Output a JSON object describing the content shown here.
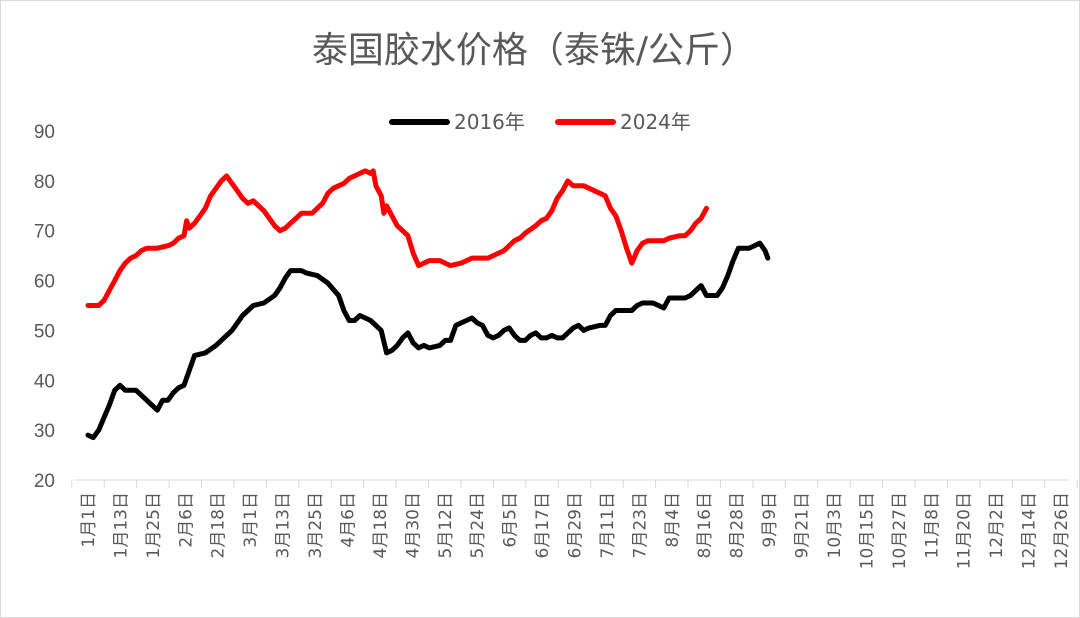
{
  "chart_data": {
    "type": "line",
    "title": "泰国胶水价格（泰铢/公斤）",
    "xlabel": "",
    "ylabel": "",
    "ylim": [
      20,
      90
    ],
    "yticks": [
      "20",
      "30",
      "40",
      "50",
      "60",
      "70",
      "80",
      "90"
    ],
    "grid": false,
    "legend_position": "top-center",
    "categories": [
      "1月1日",
      "1月13日",
      "1月25日",
      "2月6日",
      "2月18日",
      "3月1日",
      "3月13日",
      "3月25日",
      "4月6日",
      "4月18日",
      "4月30日",
      "5月12日",
      "5月24日",
      "6月5日",
      "6月17日",
      "6月29日",
      "7月11日",
      "7月23日",
      "8月4日",
      "8月16日",
      "8月28日",
      "9月9日",
      "9月21日",
      "10月3日",
      "10月15日",
      "10月27日",
      "11月8日",
      "11月20日",
      "12月2日",
      "12月14日",
      "12月26日"
    ],
    "series": [
      {
        "name": "2016年",
        "color": "#000000",
        "points": [
          [
            0,
            29
          ],
          [
            2,
            28.5
          ],
          [
            4,
            30
          ],
          [
            8,
            35
          ],
          [
            10,
            38
          ],
          [
            12,
            39
          ],
          [
            14,
            38
          ],
          [
            18,
            38
          ],
          [
            20,
            37
          ],
          [
            24,
            35
          ],
          [
            26,
            34
          ],
          [
            28,
            36
          ],
          [
            30,
            36
          ],
          [
            32,
            37.5
          ],
          [
            34,
            38.5
          ],
          [
            36,
            39
          ],
          [
            38,
            42
          ],
          [
            40,
            45
          ],
          [
            44,
            45.5
          ],
          [
            48,
            47
          ],
          [
            50,
            48
          ],
          [
            54,
            50
          ],
          [
            58,
            53
          ],
          [
            62,
            55
          ],
          [
            66,
            55.5
          ],
          [
            70,
            57
          ],
          [
            72,
            58.5
          ],
          [
            74,
            60.5
          ],
          [
            76,
            62
          ],
          [
            80,
            62
          ],
          [
            82,
            61.5
          ],
          [
            86,
            61
          ],
          [
            90,
            59.5
          ],
          [
            94,
            57
          ],
          [
            96,
            54
          ],
          [
            98,
            52
          ],
          [
            100,
            52
          ],
          [
            102,
            53
          ],
          [
            106,
            52
          ],
          [
            110,
            50
          ],
          [
            112,
            45.5
          ],
          [
            114,
            46
          ],
          [
            116,
            47
          ],
          [
            118,
            48.5
          ],
          [
            120,
            49.5
          ],
          [
            122,
            47.5
          ],
          [
            124,
            46.5
          ],
          [
            126,
            47
          ],
          [
            128,
            46.5
          ],
          [
            132,
            47
          ],
          [
            134,
            48
          ],
          [
            136,
            48
          ],
          [
            138,
            51
          ],
          [
            140,
            51.5
          ],
          [
            142,
            52
          ],
          [
            144,
            52.5
          ],
          [
            146,
            51.5
          ],
          [
            148,
            51
          ],
          [
            150,
            49
          ],
          [
            152,
            48.5
          ],
          [
            154,
            49
          ],
          [
            156,
            50
          ],
          [
            158,
            50.5
          ],
          [
            160,
            49
          ],
          [
            162,
            48
          ],
          [
            164,
            48
          ],
          [
            166,
            49
          ],
          [
            168,
            49.5
          ],
          [
            170,
            48.5
          ],
          [
            172,
            48.5
          ],
          [
            174,
            49
          ],
          [
            176,
            48.5
          ],
          [
            178,
            48.5
          ],
          [
            182,
            50.5
          ],
          [
            184,
            51
          ],
          [
            186,
            50
          ],
          [
            188,
            50.5
          ],
          [
            192,
            51
          ],
          [
            194,
            51
          ],
          [
            196,
            53
          ],
          [
            198,
            54
          ],
          [
            200,
            54
          ],
          [
            204,
            54
          ],
          [
            206,
            55
          ],
          [
            208,
            55.5
          ],
          [
            212,
            55.5
          ],
          [
            214,
            55
          ],
          [
            216,
            54.5
          ],
          [
            218,
            56.5
          ],
          [
            224,
            56.5
          ],
          [
            226,
            57
          ],
          [
            228,
            58
          ],
          [
            230,
            59
          ],
          [
            232,
            57
          ],
          [
            234,
            57
          ],
          [
            236,
            57
          ],
          [
            238,
            58.5
          ],
          [
            240,
            61
          ],
          [
            242,
            64
          ],
          [
            244,
            66.5
          ],
          [
            246,
            66.5
          ],
          [
            248,
            66.5
          ],
          [
            250,
            67
          ],
          [
            252,
            67.5
          ],
          [
            254,
            66
          ],
          [
            255,
            64.5
          ]
        ]
      },
      {
        "name": "2024年",
        "color": "#ff0000",
        "points": [
          [
            0,
            55
          ],
          [
            2,
            55
          ],
          [
            4,
            55
          ],
          [
            6,
            56
          ],
          [
            8,
            58
          ],
          [
            10,
            60
          ],
          [
            12,
            62
          ],
          [
            14,
            63.5
          ],
          [
            16,
            64.5
          ],
          [
            18,
            65
          ],
          [
            20,
            66
          ],
          [
            22,
            66.5
          ],
          [
            26,
            66.5
          ],
          [
            30,
            67
          ],
          [
            32,
            67.5
          ],
          [
            34,
            68.5
          ],
          [
            36,
            69
          ],
          [
            37,
            72
          ],
          [
            38,
            70.5
          ],
          [
            40,
            71.5
          ],
          [
            42,
            73
          ],
          [
            44,
            74.5
          ],
          [
            46,
            77
          ],
          [
            48,
            78.5
          ],
          [
            50,
            80
          ],
          [
            52,
            81
          ],
          [
            54,
            79.5
          ],
          [
            56,
            78
          ],
          [
            58,
            76.5
          ],
          [
            60,
            75.5
          ],
          [
            62,
            76
          ],
          [
            64,
            75
          ],
          [
            66,
            74
          ],
          [
            68,
            72.5
          ],
          [
            70,
            71
          ],
          [
            72,
            70
          ],
          [
            74,
            70.5
          ],
          [
            76,
            71.5
          ],
          [
            78,
            72.5
          ],
          [
            80,
            73.5
          ],
          [
            82,
            73.5
          ],
          [
            84,
            73.5
          ],
          [
            86,
            74.5
          ],
          [
            88,
            75.5
          ],
          [
            90,
            77.5
          ],
          [
            92,
            78.5
          ],
          [
            94,
            79
          ],
          [
            96,
            79.5
          ],
          [
            98,
            80.5
          ],
          [
            100,
            81
          ],
          [
            102,
            81.5
          ],
          [
            104,
            82
          ],
          [
            106,
            81.5
          ],
          [
            107,
            82
          ],
          [
            108,
            79
          ],
          [
            110,
            77
          ],
          [
            111,
            73.5
          ],
          [
            112,
            75
          ],
          [
            114,
            73
          ],
          [
            116,
            71
          ],
          [
            118,
            70
          ],
          [
            120,
            69
          ],
          [
            122,
            65.5
          ],
          [
            124,
            63
          ],
          [
            126,
            63.5
          ],
          [
            128,
            64
          ],
          [
            132,
            64
          ],
          [
            134,
            63.5
          ],
          [
            136,
            63
          ],
          [
            140,
            63.5
          ],
          [
            142,
            64
          ],
          [
            144,
            64.5
          ],
          [
            148,
            64.5
          ],
          [
            150,
            64.5
          ],
          [
            152,
            65
          ],
          [
            156,
            66
          ],
          [
            158,
            67
          ],
          [
            160,
            68
          ],
          [
            162,
            68.5
          ],
          [
            164,
            69.5
          ],
          [
            168,
            71
          ],
          [
            170,
            72
          ],
          [
            172,
            72.5
          ],
          [
            174,
            74
          ],
          [
            176,
            76.5
          ],
          [
            178,
            78
          ],
          [
            180,
            80
          ],
          [
            182,
            79
          ],
          [
            186,
            79
          ],
          [
            188,
            78.5
          ],
          [
            192,
            77.5
          ],
          [
            194,
            77
          ],
          [
            196,
            74.5
          ],
          [
            198,
            73
          ],
          [
            200,
            70
          ],
          [
            202,
            66.5
          ],
          [
            204,
            63.5
          ],
          [
            206,
            66
          ],
          [
            208,
            67.5
          ],
          [
            210,
            68
          ],
          [
            214,
            68
          ],
          [
            216,
            68
          ],
          [
            218,
            68.5
          ],
          [
            222,
            69
          ],
          [
            224,
            69
          ],
          [
            226,
            70
          ],
          [
            228,
            71.5
          ],
          [
            230,
            72.5
          ],
          [
            232,
            74.5
          ]
        ]
      }
    ]
  }
}
